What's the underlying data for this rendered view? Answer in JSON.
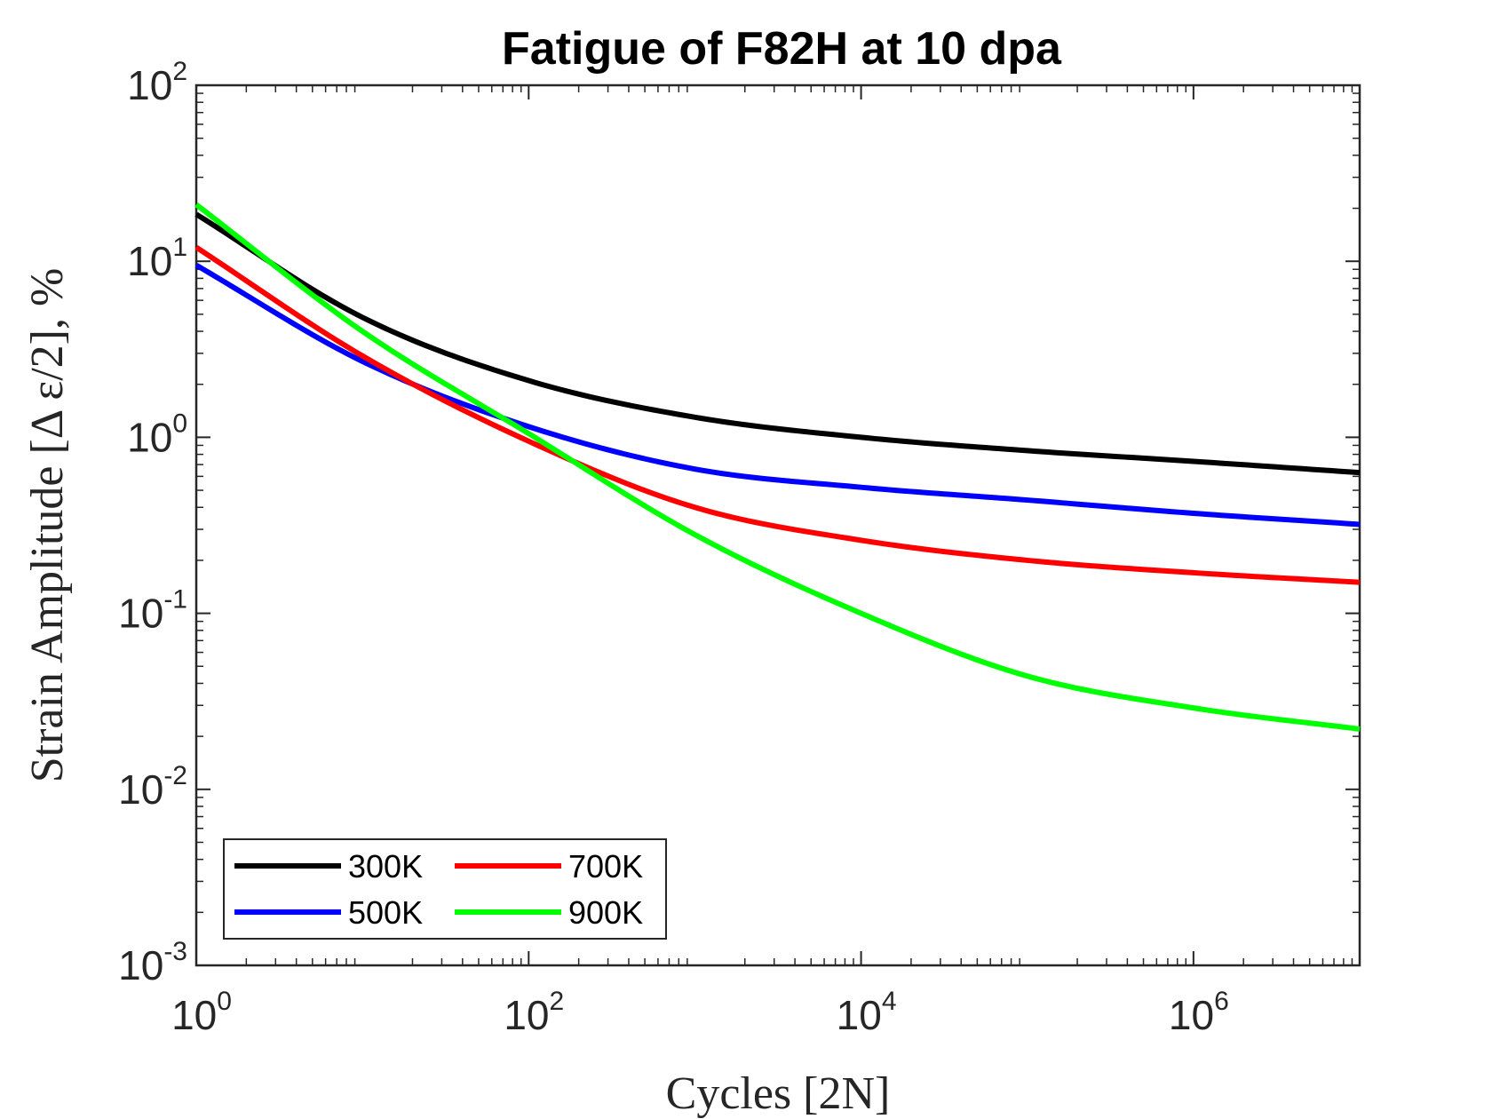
{
  "chart_data": {
    "type": "line",
    "title": "Fatigue of F82H at 10 dpa",
    "xlabel": "Cycles [2N]",
    "ylabel": "Strain Amplitude [Δ ε/2], %",
    "xscale": "log",
    "yscale": "log",
    "xlim": [
      1,
      10000000
    ],
    "ylim": [
      0.001,
      100
    ],
    "xticks": [
      {
        "base": "10",
        "exp": "0",
        "value": 1
      },
      {
        "base": "10",
        "exp": "2",
        "value": 100
      },
      {
        "base": "10",
        "exp": "4",
        "value": 10000
      },
      {
        "base": "10",
        "exp": "6",
        "value": 1000000
      }
    ],
    "yticks": [
      {
        "base": "10",
        "exp": "-3",
        "value": 0.001
      },
      {
        "base": "10",
        "exp": "-2",
        "value": 0.01
      },
      {
        "base": "10",
        "exp": "-1",
        "value": 0.1
      },
      {
        "base": "10",
        "exp": "0",
        "value": 1
      },
      {
        "base": "10",
        "exp": "1",
        "value": 10
      },
      {
        "base": "10",
        "exp": "2",
        "value": 100
      }
    ],
    "grid": false,
    "legend_position": "bottom-left",
    "legend_columns": 2,
    "x": [
      1,
      10,
      100,
      1000,
      10000,
      100000,
      1000000,
      10000000
    ],
    "series": [
      {
        "name": "300K",
        "color": "#000000",
        "values": [
          18.5,
          4.8,
          2.1,
          1.3,
          1.0,
          0.84,
          0.73,
          0.63
        ]
      },
      {
        "name": "500K",
        "color": "#0000ff",
        "values": [
          9.5,
          2.7,
          1.15,
          0.66,
          0.52,
          0.44,
          0.37,
          0.32
        ]
      },
      {
        "name": "700K",
        "color": "#ff0000",
        "values": [
          12.0,
          2.9,
          0.95,
          0.4,
          0.26,
          0.2,
          0.17,
          0.15
        ]
      },
      {
        "name": "900K",
        "color": "#00ff00",
        "values": [
          21.0,
          4.0,
          1.05,
          0.28,
          0.1,
          0.044,
          0.029,
          0.022
        ]
      }
    ]
  }
}
